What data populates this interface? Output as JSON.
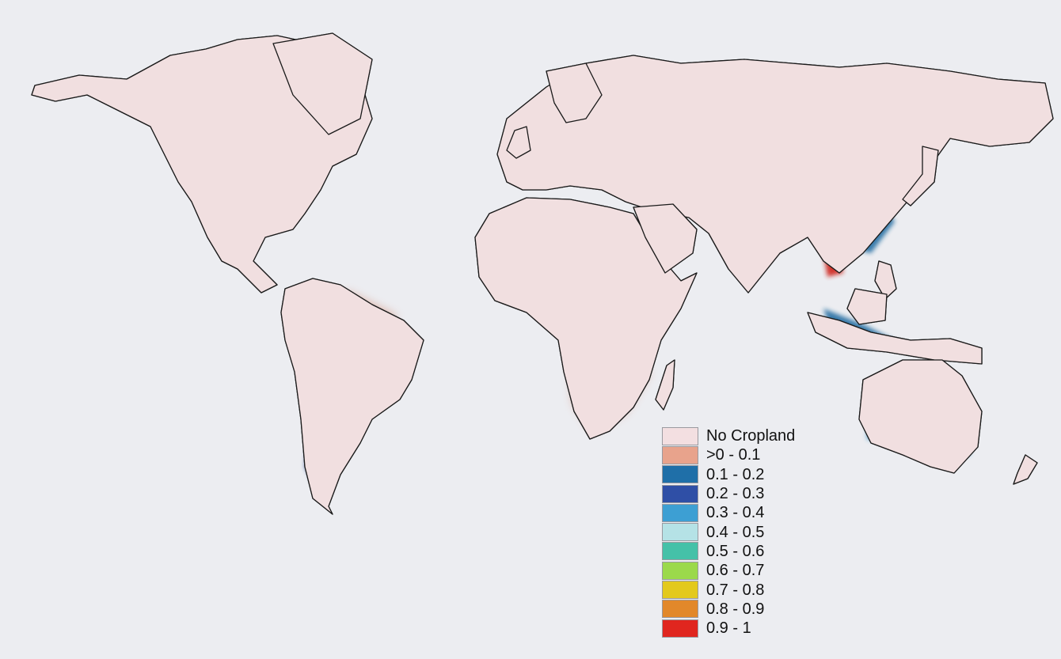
{
  "map": {
    "background": "#ecedf1",
    "land_base_color": "#f1dfe0",
    "coastline_color": "#1a1a1a",
    "legend": {
      "placement": "bottom-center",
      "items": [
        {
          "label": "No Cropland",
          "color": "#f3dfe1"
        },
        {
          "label": ">0 - 0.1",
          "color": "#e8a38c"
        },
        {
          "label": "0.1 - 0.2",
          "color": "#1f6fa8"
        },
        {
          "label": "0.2 - 0.3",
          "color": "#2f4fa6"
        },
        {
          "label": "0.3 - 0.4",
          "color": "#3d9fd3"
        },
        {
          "label": "0.4 - 0.5",
          "color": "#b5e2e6"
        },
        {
          "label": "0.5 - 0.6",
          "color": "#45c1a8"
        },
        {
          "label": "0.6 - 0.7",
          "color": "#9bd94b"
        },
        {
          "label": "0.7 - 0.8",
          "color": "#e3c91c"
        },
        {
          "label": "0.8 - 0.9",
          "color": "#e2882a"
        },
        {
          "label": "0.9 - 1",
          "color": "#e0261f"
        }
      ]
    }
  }
}
